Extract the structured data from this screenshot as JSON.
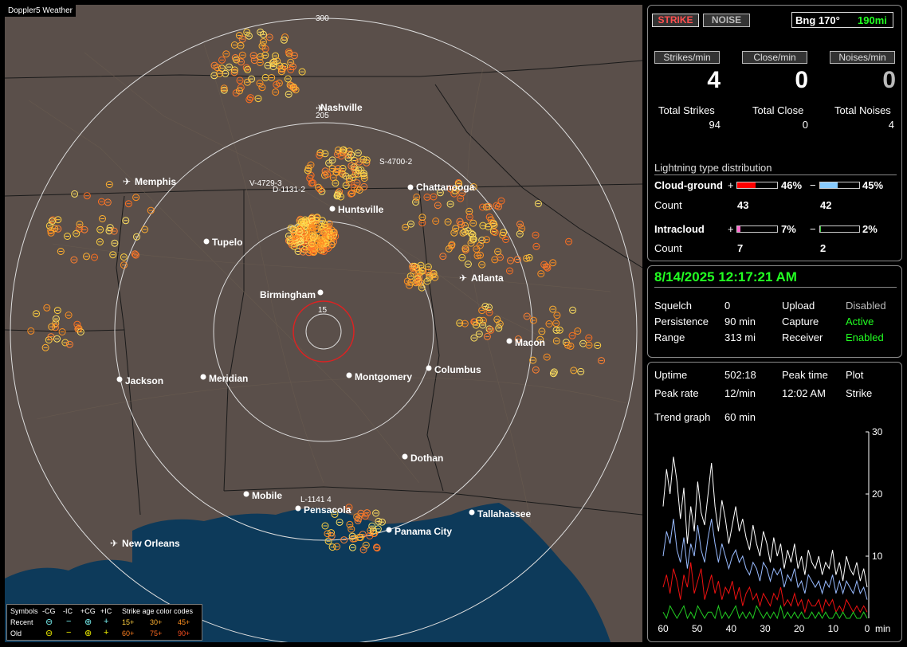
{
  "app_title": "Doppler5 Weather",
  "colors": {
    "accent_green": "#22ff22",
    "strike_red": "#cc0000",
    "cg_pos": "#ff0000",
    "cg_neg": "#88ccff",
    "ic_pos": "#ff66cc",
    "ic_neg": "#44cc44"
  },
  "header": {
    "strike_label": "STRIKE",
    "noise_label": "NOISE",
    "bearing_label": "Bng 170°",
    "distance_label": "190mi"
  },
  "rates": {
    "strikes_label": "Strikes/min",
    "close_label": "Close/min",
    "noises_label": "Noises/min",
    "strikes_value": "4",
    "close_value": "0",
    "noises_value": "0"
  },
  "totals": {
    "strikes_label": "Total Strikes",
    "close_label": "Total Close",
    "noises_label": "Total Noises",
    "strikes_value": "94",
    "close_value": "0",
    "noises_value": "4"
  },
  "distribution": {
    "title": "Lightning type distribution",
    "cg_label": "Cloud-ground",
    "plus": "+",
    "minus": "−",
    "cg_pos_pct": "46%",
    "cg_neg_pct": "45%",
    "cg_pos_fill": 0.46,
    "cg_neg_fill": 0.45,
    "count_label": "Count",
    "cg_pos_count": "43",
    "cg_neg_count": "42",
    "ic_label": "Intracloud",
    "ic_pos_pct": "7%",
    "ic_neg_pct": "2%",
    "ic_pos_fill": 0.07,
    "ic_neg_fill": 0.02,
    "ic_pos_count": "7",
    "ic_neg_count": "2"
  },
  "status": {
    "datetime": "8/14/2025 12:17:21 AM",
    "squelch_label": "Squelch",
    "squelch_value": "0",
    "upload_label": "Upload",
    "upload_value": "Disabled",
    "persistence_label": "Persistence",
    "persistence_value": "90 min",
    "capture_label": "Capture",
    "capture_value": "Active",
    "range_label": "Range",
    "range_value": "313 mi",
    "receiver_label": "Receiver",
    "receiver_value": "Enabled"
  },
  "stats": {
    "uptime_label": "Uptime",
    "uptime_value": "502:18",
    "peak_time_label": "Peak time",
    "plot_label": "Plot",
    "peak_rate_label": "Peak rate",
    "peak_rate_value": "12/min",
    "peak_time_value": "12:02 AM",
    "plot_value": "Strike",
    "trend_label": "Trend graph",
    "trend_value": "60 min"
  },
  "chart_data": {
    "type": "line",
    "x_ticks": [
      "60",
      "50",
      "40",
      "30",
      "20",
      "10",
      "0"
    ],
    "x_unit": "min",
    "y_ticks": [
      "30",
      "20",
      "10"
    ],
    "ylim": [
      0,
      30
    ],
    "series": [
      {
        "values": [
          18,
          24,
          20,
          26,
          22,
          16,
          21,
          12,
          18,
          14,
          22,
          17,
          15,
          20,
          25,
          18,
          14,
          19,
          16,
          12,
          15,
          18,
          14,
          16,
          13,
          11,
          15,
          12,
          10,
          14,
          12,
          9,
          13,
          10,
          12,
          8,
          11,
          9,
          12,
          8,
          10,
          7,
          11,
          9,
          8,
          10,
          7,
          9,
          8,
          11,
          7,
          9,
          6,
          10,
          8,
          7,
          9,
          6,
          8,
          5
        ]
      },
      {
        "values": [
          10,
          14,
          12,
          16,
          11,
          9,
          13,
          8,
          12,
          10,
          15,
          11,
          9,
          13,
          16,
          12,
          9,
          12,
          10,
          8,
          10,
          11,
          9,
          10,
          8,
          7,
          9,
          8,
          6,
          9,
          8,
          6,
          8,
          7,
          8,
          5,
          7,
          6,
          8,
          5,
          6,
          4,
          7,
          6,
          5,
          6,
          4,
          6,
          5,
          7,
          4,
          6,
          4,
          6,
          5,
          4,
          6,
          4,
          5,
          3
        ]
      },
      {
        "values": [
          5,
          7,
          4,
          8,
          6,
          3,
          7,
          5,
          9,
          4,
          6,
          8,
          3,
          5,
          7,
          4,
          6,
          3,
          5,
          4,
          6,
          3,
          5,
          2,
          4,
          5,
          3,
          4,
          2,
          4,
          3,
          2,
          4,
          3,
          5,
          2,
          3,
          2,
          4,
          2,
          3,
          1,
          3,
          2,
          2,
          3,
          1,
          3,
          2,
          3,
          1,
          2,
          1,
          3,
          2,
          1,
          2,
          1,
          2,
          1
        ]
      },
      {
        "values": [
          1,
          0,
          2,
          1,
          0,
          1,
          2,
          0,
          1,
          0,
          2,
          1,
          0,
          1,
          1,
          0,
          2,
          0,
          1,
          0,
          1,
          2,
          0,
          1,
          0,
          1,
          0,
          2,
          1,
          0,
          1,
          0,
          1,
          0,
          2,
          0,
          1,
          0,
          1,
          0,
          1,
          0,
          0,
          1,
          0,
          1,
          0,
          1,
          0,
          0,
          1,
          0,
          1,
          0,
          0,
          1,
          0,
          0,
          1,
          0
        ]
      }
    ]
  },
  "map": {
    "ring_labels": [
      "300",
      "205",
      "15"
    ],
    "cities": [
      "Nashville",
      "Memphis",
      "Chattanooga",
      "Huntsville",
      "Tupelo",
      "Atlanta",
      "Birmingham",
      "Macon",
      "Jackson",
      "Meridian",
      "Montgomery",
      "Columbus",
      "Dothan",
      "Mobile",
      "Pensacola",
      "Tallahassee",
      "Panama City",
      "New Orleans"
    ],
    "annotations": [
      "S-4700-2",
      "V-4729-3",
      "D-1131-2",
      "L-1141  4"
    ]
  },
  "legend": {
    "symbols_label": "Symbols",
    "cg_neg": "-CG",
    "ic_neg": "-IC",
    "cg_pos": "+CG",
    "ic_pos": "+IC",
    "age_title": "Strike age color codes",
    "recent_label": "Recent",
    "old_label": "Old",
    "age_recent": [
      "15+",
      "30+",
      "45+"
    ],
    "age_old": [
      "60+",
      "75+",
      "90+"
    ]
  }
}
